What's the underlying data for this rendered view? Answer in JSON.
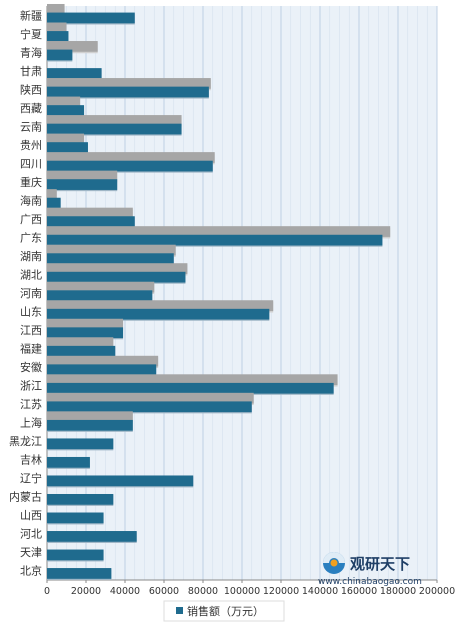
{
  "chart_data": {
    "type": "bar",
    "orientation": "horizontal",
    "categories": [
      "新疆",
      "宁夏",
      "青海",
      "甘肃",
      "陕西",
      "西藏",
      "云南",
      "贵州",
      "四川",
      "重庆",
      "海南",
      "广西",
      "广东",
      "湖南",
      "湖北",
      "河南",
      "山东",
      "江西",
      "福建",
      "安徽",
      "浙江",
      "江苏",
      "上海",
      "黑龙江",
      "吉林",
      "辽宁",
      "内蒙古",
      "山西",
      "河北",
      "天津",
      "北京"
    ],
    "series": [
      {
        "name": "",
        "color": "#a6a6a6",
        "values": [
          9000,
          10000,
          26000,
          null,
          84000,
          17000,
          69000,
          19000,
          86000,
          36000,
          5000,
          44000,
          176000,
          66000,
          72000,
          55000,
          116000,
          39000,
          34000,
          57000,
          149000,
          106000,
          44000,
          null,
          null,
          null,
          null,
          null,
          null,
          null,
          null
        ]
      },
      {
        "name": "销售额（万元）",
        "color": "#1f6b8e",
        "values": [
          45000,
          11000,
          13000,
          28000,
          83000,
          19000,
          69000,
          21000,
          85000,
          36000,
          7000,
          45000,
          172000,
          65000,
          71000,
          54000,
          114000,
          39000,
          35000,
          56000,
          147000,
          105000,
          44000,
          34000,
          22000,
          75000,
          34000,
          29000,
          46000,
          29000,
          33000
        ]
      }
    ],
    "xlim": [
      0,
      200000
    ],
    "xticks": [
      "0",
      "20000",
      "40000",
      "60000",
      "80000",
      "100000",
      "120000",
      "140000",
      "160000",
      "180000",
      "200000"
    ],
    "grid": true,
    "legend": {
      "label": "销售额（万元）",
      "position": "bottom"
    }
  },
  "watermark": {
    "name": "观研天下",
    "url": "www.chinabaogao.com"
  }
}
